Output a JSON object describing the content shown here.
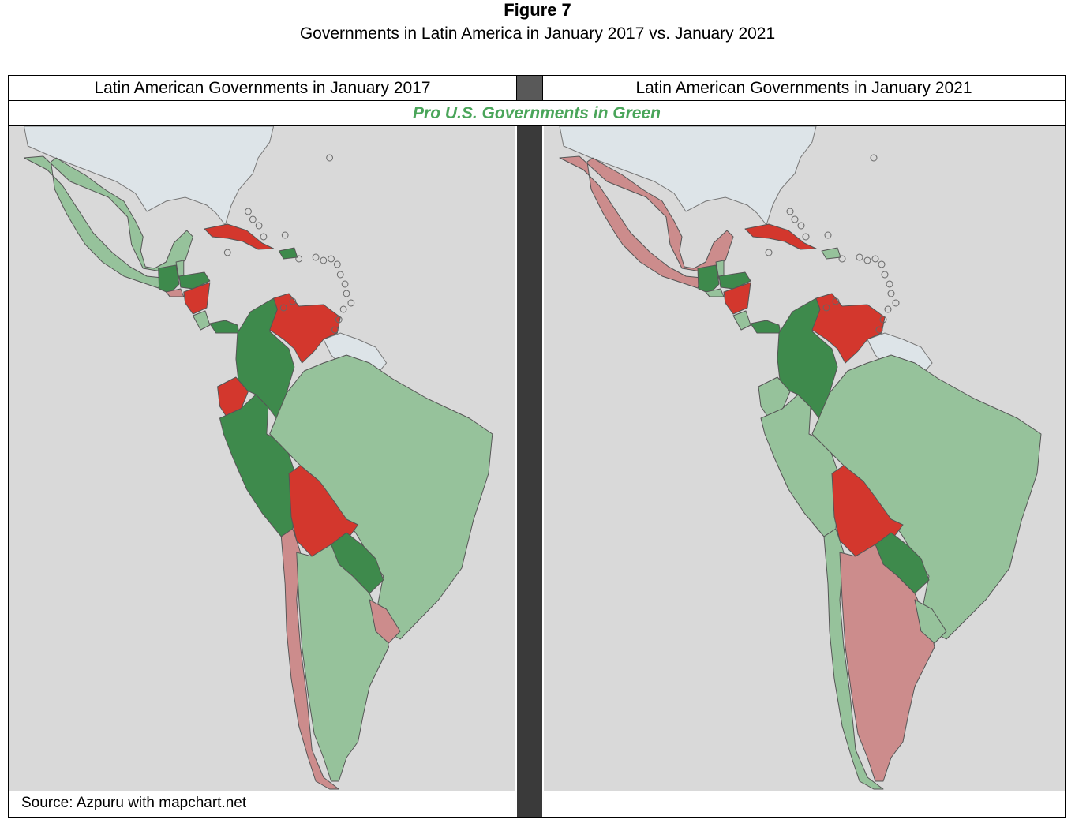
{
  "figure": {
    "title": "Figure 7",
    "subtitle": "Governments in Latin America in January 2017 vs. January 2021"
  },
  "panels": {
    "left_title": "Latin American Governments in January 2017",
    "right_title": "Latin American Governments in January 2021"
  },
  "banner": {
    "text": "Pro U.S. Governments in Green",
    "color": "#4aa55a"
  },
  "source": "Source: Azpuru with mapchart.net",
  "colors": {
    "ocean": "#d9d9d9",
    "non_latin_land": "#dde4e8",
    "dark_green": "#3e8a4c",
    "light_green": "#96c29b",
    "dark_red": "#d3372d",
    "light_red": "#cc8c8c"
  },
  "maps": {
    "2017": {
      "Mexico": "light_green",
      "Guatemala": "dark_green",
      "Belize": "light_green",
      "Honduras": "dark_green",
      "El Salvador": "light_red",
      "Nicaragua": "dark_red",
      "Costa Rica": "light_green",
      "Panama": "dark_green",
      "Cuba": "dark_red",
      "Dominican Republic": "dark_green",
      "Colombia": "dark_green",
      "Venezuela": "dark_red",
      "Ecuador": "dark_red",
      "Peru": "dark_green",
      "Brazil": "light_green",
      "Bolivia": "dark_red",
      "Paraguay": "dark_green",
      "Chile": "light_red",
      "Argentina": "light_green",
      "Uruguay": "light_red"
    },
    "2021": {
      "Mexico": "light_red",
      "Guatemala": "dark_green",
      "Belize": "light_green",
      "Honduras": "dark_green",
      "El Salvador": "light_green",
      "Nicaragua": "dark_red",
      "Costa Rica": "light_green",
      "Panama": "dark_green",
      "Cuba": "dark_red",
      "Dominican Republic": "light_green",
      "Colombia": "dark_green",
      "Venezuela": "dark_red",
      "Ecuador": "light_green",
      "Peru": "light_green",
      "Brazil": "light_green",
      "Bolivia": "dark_red",
      "Paraguay": "dark_green",
      "Chile": "light_green",
      "Argentina": "light_red",
      "Uruguay": "light_green"
    }
  }
}
